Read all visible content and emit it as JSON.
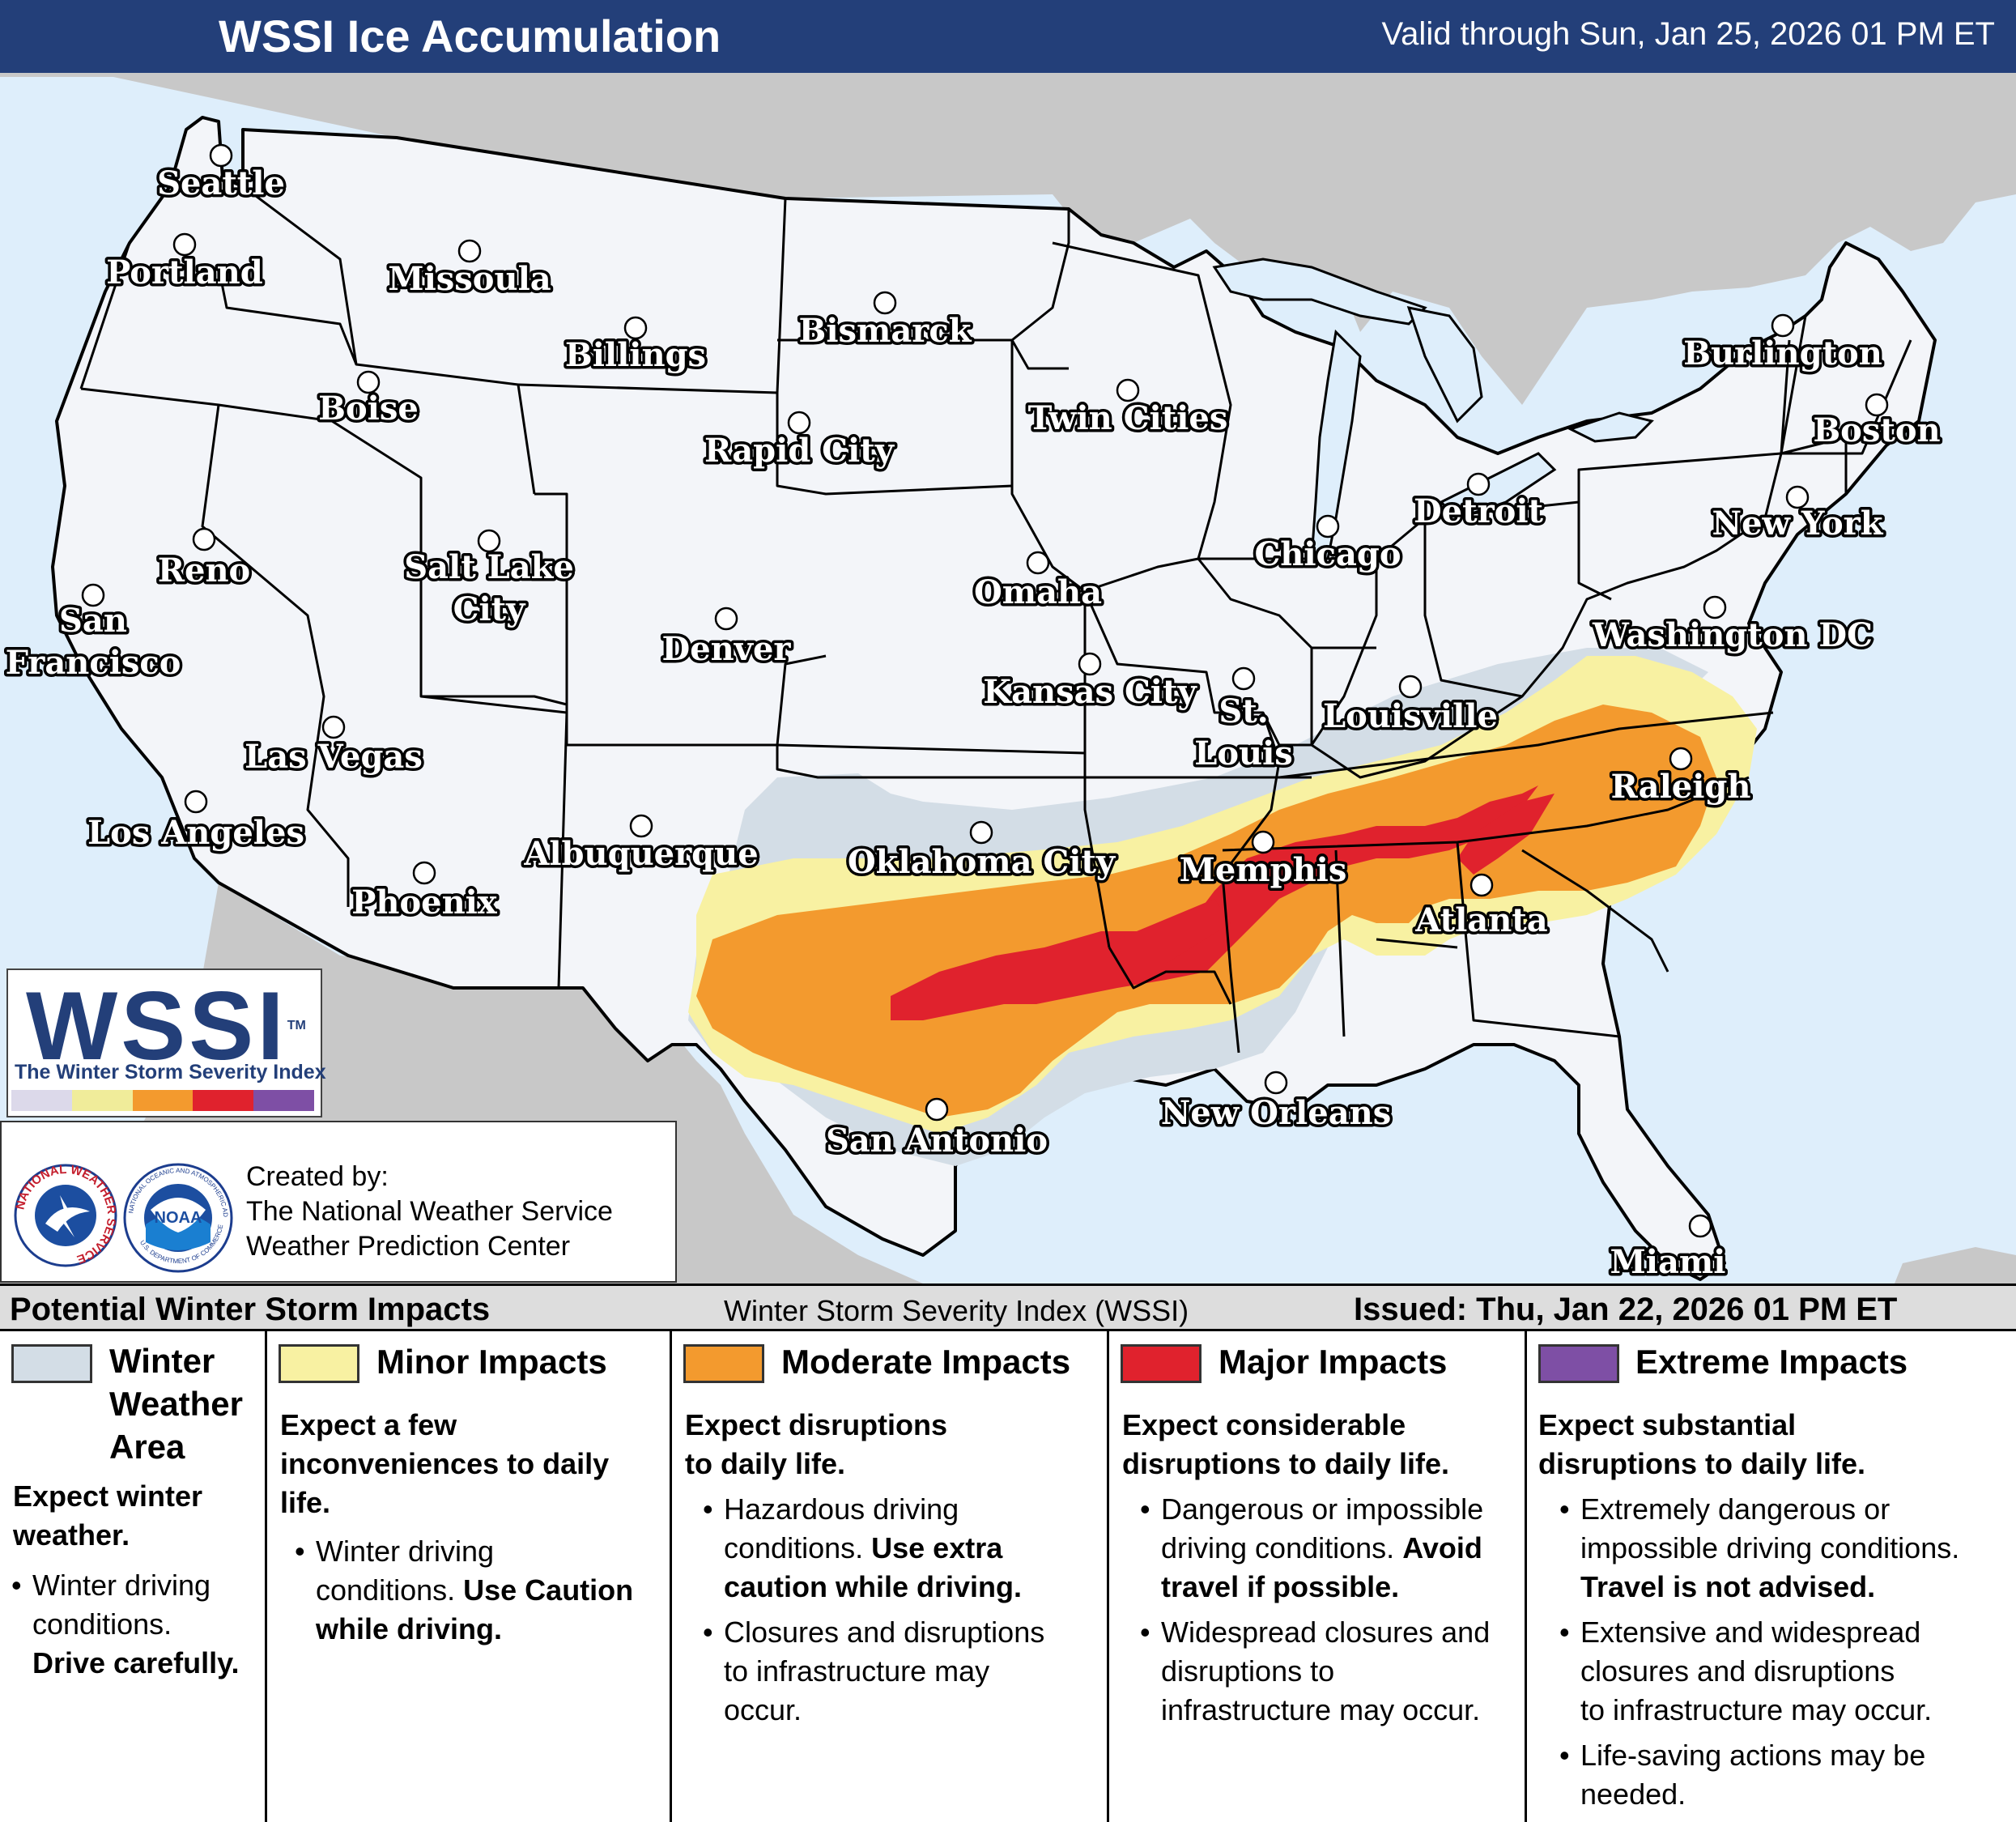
{
  "header": {
    "title": "WSSI Ice Accumulation",
    "valid": "Valid through Sun, Jan 25, 2026 01 PM ET"
  },
  "colors": {
    "header_bg": "#233f79",
    "ocean": "#deeefb",
    "foreign_land": "#c8c8c8",
    "us_land": "#f3f5f9",
    "winter_weather_area": "#d3dde6",
    "minor": "#f8f1a2",
    "moderate": "#f39a2e",
    "major": "#e0222d",
    "extreme": "#7e4fa5"
  },
  "cities": [
    {
      "name": "Seattle",
      "lines": [
        "Seattle"
      ]
    },
    {
      "name": "Portland",
      "lines": [
        "Portland"
      ]
    },
    {
      "name": "Missoula",
      "lines": [
        "Missoula"
      ]
    },
    {
      "name": "Billings",
      "lines": [
        "Billings"
      ]
    },
    {
      "name": "Bismarck",
      "lines": [
        "Bismarck"
      ]
    },
    {
      "name": "Boise",
      "lines": [
        "Boise"
      ]
    },
    {
      "name": "Rapid City",
      "lines": [
        "Rapid City"
      ]
    },
    {
      "name": "Twin Cities",
      "lines": [
        "Twin Cities"
      ]
    },
    {
      "name": "Burlington",
      "lines": [
        "Burlington"
      ]
    },
    {
      "name": "Boston",
      "lines": [
        "Boston"
      ]
    },
    {
      "name": "Detroit",
      "lines": [
        "Detroit"
      ]
    },
    {
      "name": "New York",
      "lines": [
        "New York"
      ]
    },
    {
      "name": "Chicago",
      "lines": [
        "Chicago"
      ]
    },
    {
      "name": "Omaha",
      "lines": [
        "Omaha"
      ]
    },
    {
      "name": "Reno",
      "lines": [
        "Reno"
      ]
    },
    {
      "name": "Salt Lake City",
      "lines": [
        "Salt Lake",
        "City"
      ]
    },
    {
      "name": "San Francisco",
      "lines": [
        "San",
        "Francisco"
      ]
    },
    {
      "name": "Denver",
      "lines": [
        "Denver"
      ]
    },
    {
      "name": "Washington DC",
      "lines": [
        "Washington DC"
      ]
    },
    {
      "name": "Kansas City",
      "lines": [
        "Kansas City"
      ]
    },
    {
      "name": "St. Louis",
      "lines": [
        "St.",
        "Louis"
      ]
    },
    {
      "name": "Louisville",
      "lines": [
        "Louisville"
      ]
    },
    {
      "name": "Las Vegas",
      "lines": [
        "Las Vegas"
      ]
    },
    {
      "name": "Los Angeles",
      "lines": [
        "Los Angeles"
      ]
    },
    {
      "name": "Raleigh",
      "lines": [
        "Raleigh"
      ]
    },
    {
      "name": "Albuquerque",
      "lines": [
        "Albuquerque"
      ]
    },
    {
      "name": "Oklahoma City",
      "lines": [
        "Oklahoma City"
      ]
    },
    {
      "name": "Memphis",
      "lines": [
        "Memphis"
      ]
    },
    {
      "name": "Phoenix",
      "lines": [
        "Phoenix"
      ]
    },
    {
      "name": "Atlanta",
      "lines": [
        "Atlanta"
      ]
    },
    {
      "name": "New Orleans",
      "lines": [
        "New Orleans"
      ]
    },
    {
      "name": "San Antonio",
      "lines": [
        "San Antonio"
      ]
    },
    {
      "name": "Miami",
      "lines": [
        "Miami"
      ]
    }
  ],
  "logo": {
    "text": "WSSI",
    "tm": "TM",
    "subtitle": "The Winter Storm Severity Index"
  },
  "credits": {
    "nws_ring": "NATIONAL WEATHER SERVICE",
    "noaa": "NOAA",
    "noaa_ring": "NATIONAL OCEANIC AND ATMOSPHERIC ADMINISTRATION",
    "noaa_ring_bottom": "U.S. DEPARTMENT OF COMMERCE",
    "line1": "Created by:",
    "line2": "The National Weather Service",
    "line3": "Weather Prediction Center"
  },
  "legend": {
    "strip_left": "Potential Winter Storm Impacts",
    "strip_center": "Winter Storm Severity Index (WSSI)",
    "strip_right": "Issued: Thu, Jan 22, 2026 01 PM ET",
    "winter": {
      "title_l1": "Winter",
      "title_l2": "Weather",
      "title_l3": "Area",
      "expect_l1": "Expect winter",
      "expect_l2": "weather.",
      "b1_l1": "Winter driving",
      "b1_l2": "conditions.",
      "b1_bold": "Drive carefully."
    },
    "minor": {
      "title": "Minor Impacts",
      "expect_l1": "Expect a few",
      "expect_l2": "inconveniences to daily",
      "expect_l3": "life.",
      "b1_l1": "Winter driving",
      "b1_l2": "conditions.",
      "b1_bold_a": "Use Caution",
      "b1_bold_b": "while driving."
    },
    "moderate": {
      "title": "Moderate Impacts",
      "expect_l1": "Expect disruptions",
      "expect_l2": "to daily life.",
      "b1_l1": "Hazardous driving",
      "b1_l2": "conditions.",
      "b1_bold_a": "Use extra",
      "b1_bold_b": "caution while driving.",
      "b2_l1": "Closures and disruptions",
      "b2_l2": "to infrastructure may",
      "b2_l3": "occur."
    },
    "major": {
      "title": "Major Impacts",
      "expect_l1": "Expect considerable",
      "expect_l2": "disruptions to daily life.",
      "b1_l1": "Dangerous or impossible",
      "b1_l2": "driving conditions.",
      "b1_bold_a": "Avoid",
      "b1_bold_b": "travel if possible.",
      "b2_l1": "Widespread closures and",
      "b2_l2": "disruptions to",
      "b2_l3": "infrastructure may occur."
    },
    "extreme": {
      "title": "Extreme Impacts",
      "expect_l1": "Expect substantial",
      "expect_l2": "disruptions to daily life.",
      "b1_l1": "Extremely dangerous or",
      "b1_l2": "impossible driving conditions.",
      "b1_bold": "Travel is not advised.",
      "b2_l1": "Extensive and widespread",
      "b2_l2": "closures and disruptions",
      "b2_l3": "to infrastructure may occur.",
      "b3_l1": "Life-saving actions may be",
      "b3_l2": "needed."
    }
  }
}
